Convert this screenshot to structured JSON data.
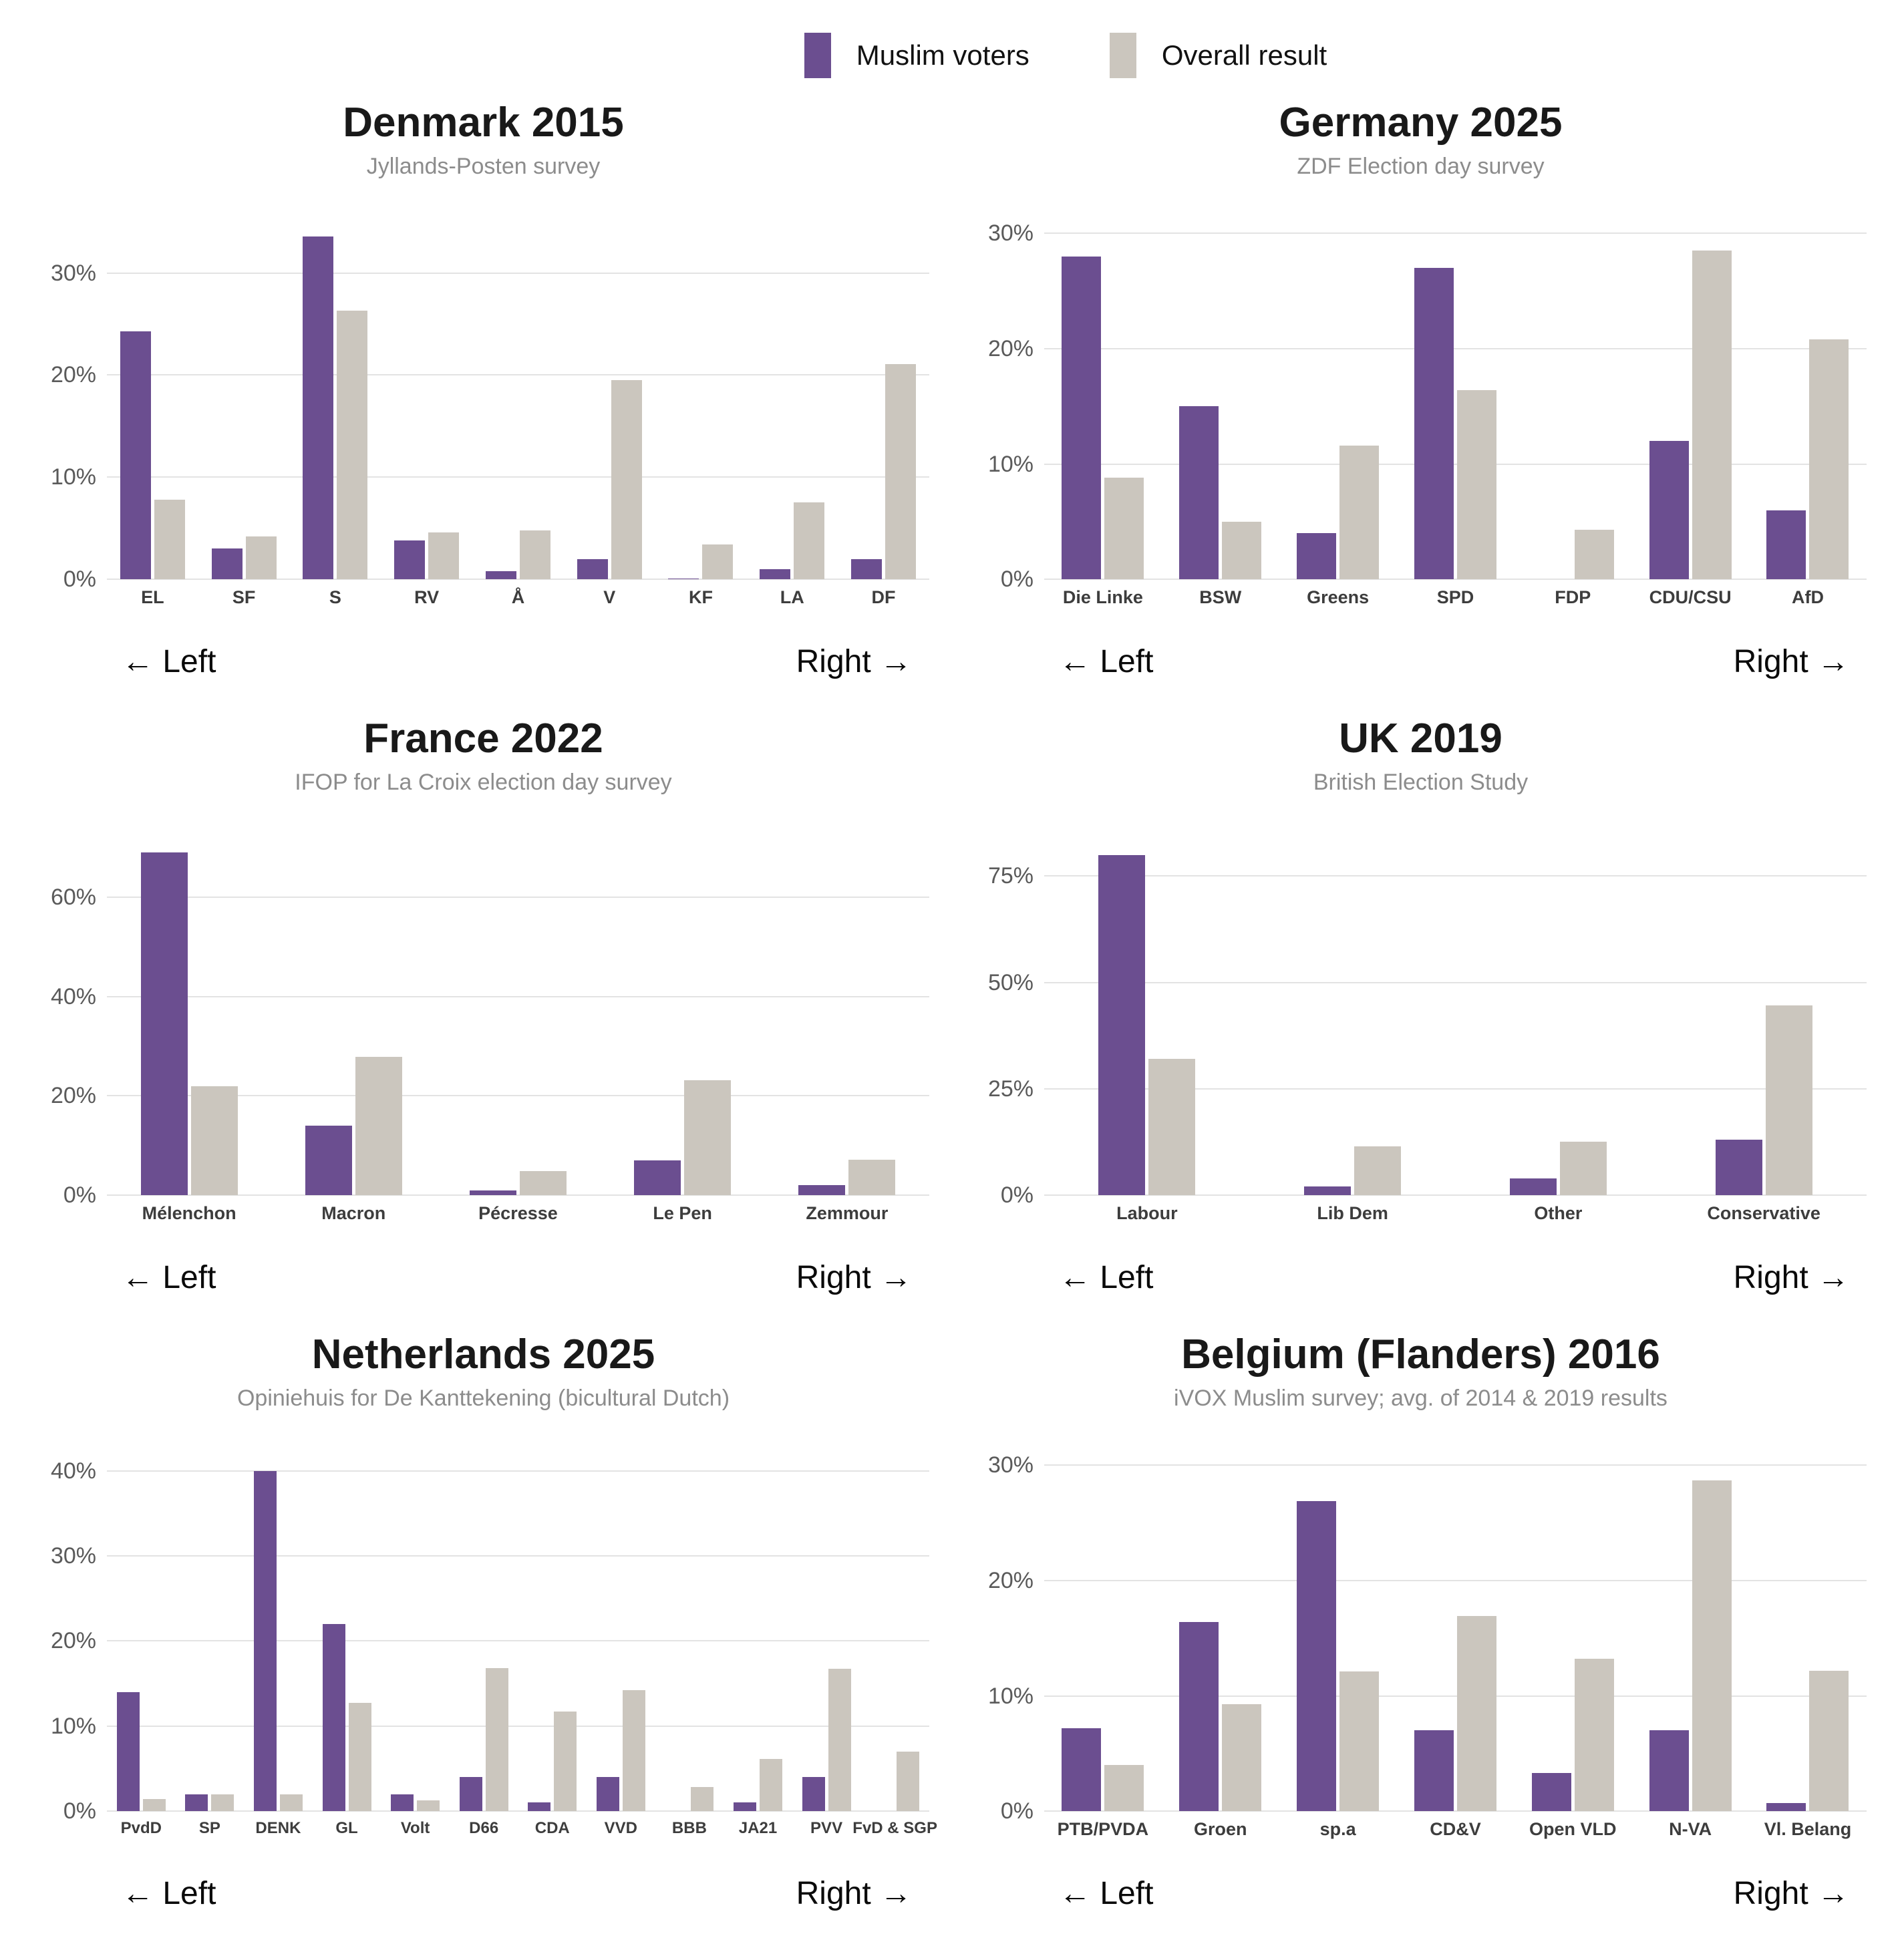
{
  "legend": {
    "items": [
      {
        "label": "Muslim voters",
        "color": "#6b4e90"
      },
      {
        "label": "Overall result",
        "color": "#cbc6be"
      }
    ]
  },
  "colors": {
    "muslim_bar": "#6b4e90",
    "overall_bar": "#cbc6be",
    "gridline": "#e3e3e3",
    "title_text": "#191919",
    "subtitle_text": "#8c8c8c",
    "tick_text": "#5a5a5a",
    "axis_label_text": "#3d3d3d",
    "background": "#ffffff"
  },
  "chart_data": [
    {
      "type": "bar",
      "title": "Denmark 2015",
      "subtitle": "Jyllands-Posten survey",
      "left_annotation": "← Left",
      "right_annotation": "Right →",
      "legend_position": "top",
      "grid": true,
      "ymax": 35,
      "ticks": [
        0,
        10,
        20,
        30
      ],
      "tick_labels": [
        "0%",
        "10%",
        "20%",
        "30%"
      ],
      "categories": [
        "EL",
        "SF",
        "S",
        "RV",
        "Å",
        "V",
        "KF",
        "LA",
        "DF"
      ],
      "series": [
        {
          "name": "Muslim voters",
          "values": [
            24.3,
            3,
            33.6,
            3.8,
            0.8,
            2,
            0.1,
            1,
            2
          ]
        },
        {
          "name": "Overall result",
          "values": [
            7.8,
            4.2,
            26.3,
            4.6,
            4.8,
            19.5,
            3.4,
            7.5,
            21.1
          ]
        }
      ]
    },
    {
      "type": "bar",
      "title": "Germany 2025",
      "subtitle": "ZDF Election day survey",
      "left_annotation": "← Left",
      "right_annotation": "Right →",
      "legend_position": "top",
      "grid": true,
      "ymax": 31,
      "ticks": [
        0,
        10,
        20,
        30
      ],
      "tick_labels": [
        "0%",
        "10%",
        "20%",
        "30%"
      ],
      "categories": [
        "Die Linke",
        "BSW",
        "Greens",
        "SPD",
        "FDP",
        "CDU/CSU",
        "AfD"
      ],
      "series": [
        {
          "name": "Muslim voters",
          "values": [
            28,
            15,
            4,
            27,
            0,
            12,
            6
          ]
        },
        {
          "name": "Overall result",
          "values": [
            8.8,
            5,
            11.6,
            16.4,
            4.3,
            28.5,
            20.8
          ]
        }
      ]
    },
    {
      "type": "bar",
      "title": "France 2022",
      "subtitle": "IFOP for La Croix election day survey",
      "left_annotation": "← Left",
      "right_annotation": "Right →",
      "legend_position": "top",
      "grid": true,
      "ymax": 72,
      "ticks": [
        0,
        20,
        40,
        60
      ],
      "tick_labels": [
        "0%",
        "20%",
        "40%",
        "60%"
      ],
      "categories": [
        "Mélenchon",
        "Macron",
        "Pécresse",
        "Le Pen",
        "Zemmour"
      ],
      "series": [
        {
          "name": "Muslim voters",
          "values": [
            69,
            14,
            1,
            7,
            2
          ]
        },
        {
          "name": "Overall result",
          "values": [
            22,
            27.9,
            4.8,
            23.2,
            7.1
          ]
        }
      ]
    },
    {
      "type": "bar",
      "title": "UK 2019",
      "subtitle": "British Election Study",
      "left_annotation": "← Left",
      "right_annotation": "Right →",
      "legend_position": "top",
      "grid": true,
      "ymax": 84,
      "ticks": [
        0,
        25,
        50,
        75
      ],
      "tick_labels": [
        "0%",
        "25%",
        "50%",
        "75%"
      ],
      "categories": [
        "Labour",
        "Lib Dem",
        "Other",
        "Conservative"
      ],
      "series": [
        {
          "name": "Muslim voters",
          "values": [
            80,
            2,
            4,
            13
          ]
        },
        {
          "name": "Overall result",
          "values": [
            32,
            11.5,
            12.6,
            44.6
          ]
        }
      ]
    },
    {
      "type": "bar",
      "title": "Netherlands 2025",
      "subtitle": "Opiniehuis for De Kanttekening (bicultural Dutch)",
      "left_annotation": "← Left",
      "right_annotation": "Right →",
      "legend_position": "top",
      "grid": true,
      "ymax": 42,
      "ticks": [
        0,
        10,
        20,
        30,
        40
      ],
      "tick_labels": [
        "0%",
        "10%",
        "20%",
        "30%",
        "40%"
      ],
      "categories": [
        "PvdD",
        "SP",
        "DENK",
        "GL",
        "Volt",
        "D66",
        "CDA",
        "VVD",
        "BBB",
        "JA21",
        "PVV",
        "FvD & SGP"
      ],
      "series": [
        {
          "name": "Muslim voters",
          "values": [
            14,
            2,
            40,
            22,
            2,
            4,
            1,
            4,
            0,
            1,
            4,
            0
          ]
        },
        {
          "name": "Overall result",
          "values": [
            1.4,
            2,
            2,
            12.7,
            1.3,
            16.8,
            11.7,
            14.2,
            2.8,
            6.1,
            16.7,
            7
          ]
        }
      ]
    },
    {
      "type": "bar",
      "title": "Belgium (Flanders) 2016",
      "subtitle": "iVOX Muslim survey; avg. of 2014 & 2019 results",
      "left_annotation": "← Left",
      "right_annotation": "Right →",
      "legend_position": "top",
      "grid": true,
      "ymax": 31,
      "ticks": [
        0,
        10,
        20,
        30
      ],
      "tick_labels": [
        "0%",
        "10%",
        "20%",
        "30%"
      ],
      "categories": [
        "PTB/PVDA",
        "Groen",
        "sp.a",
        "CD&V",
        "Open VLD",
        "N-VA",
        "Vl. Belang"
      ],
      "series": [
        {
          "name": "Muslim voters",
          "values": [
            7.2,
            16.4,
            26.9,
            7,
            3.3,
            7,
            0.7
          ]
        },
        {
          "name": "Overall result",
          "values": [
            4,
            9.3,
            12.1,
            16.9,
            13.2,
            28.7,
            12.2
          ]
        }
      ]
    }
  ]
}
